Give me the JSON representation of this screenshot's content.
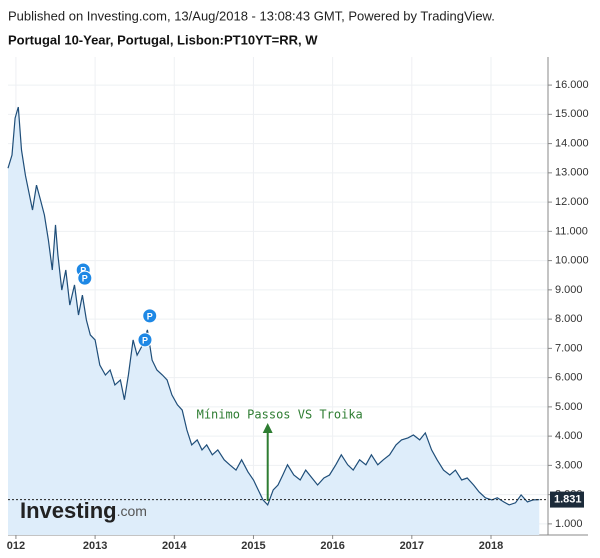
{
  "chart_data": {
    "type": "area",
    "header": "Published on Investing.com, 13/Aug/2018 - 13:08:43 GMT, Powered by TradingView.",
    "title": "Portugal 10-Year, Portugal, Lisbon:PT10YT=RR, W",
    "color": "#1f4e79",
    "fill": "#deedfa",
    "grid": true,
    "x": [
      2011.9,
      2011.95,
      2011.99,
      2012.03,
      2012.07,
      2012.12,
      2012.21,
      2012.26,
      2012.31,
      2012.36,
      2012.41,
      2012.46,
      2012.5,
      2012.53,
      2012.58,
      2012.63,
      2012.68,
      2012.74,
      2012.79,
      2012.84,
      2012.89,
      2012.94,
      2013.0,
      2013.06,
      2013.13,
      2013.19,
      2013.25,
      2013.32,
      2013.37,
      2013.42,
      2013.48,
      2013.53,
      2013.6,
      2013.66,
      2013.72,
      2013.78,
      2013.85,
      2013.91,
      2013.97,
      2014.04,
      2014.1,
      2014.16,
      2014.22,
      2014.29,
      2014.35,
      2014.41,
      2014.48,
      2014.55,
      2014.63,
      2014.7,
      2014.78,
      2014.85,
      2014.93,
      2015.0,
      2015.06,
      2015.12,
      2015.18,
      2015.25,
      2015.31,
      2015.37,
      2015.43,
      2015.51,
      2015.59,
      2015.66,
      2015.74,
      2015.81,
      2015.89,
      2015.96,
      2016.04,
      2016.11,
      2016.19,
      2016.26,
      2016.34,
      2016.42,
      2016.49,
      2016.57,
      2016.64,
      2016.72,
      2016.8,
      2016.87,
      2016.95,
      2017.02,
      2017.1,
      2017.17,
      2017.25,
      2017.32,
      2017.4,
      2017.48,
      2017.55,
      2017.63,
      2017.7,
      2017.78,
      2017.85,
      2017.93,
      2018.01,
      2018.08,
      2018.16,
      2018.23,
      2018.31,
      2018.38,
      2018.46,
      2018.53,
      2018.61
    ],
    "values": [
      13.16,
      13.61,
      14.87,
      15.25,
      13.78,
      12.92,
      11.73,
      12.58,
      12.07,
      11.56,
      10.7,
      9.68,
      11.22,
      10.19,
      8.99,
      9.68,
      8.48,
      9.17,
      8.14,
      8.82,
      7.97,
      7.46,
      7.29,
      6.43,
      6.09,
      6.26,
      5.75,
      5.92,
      5.24,
      6.09,
      7.29,
      6.77,
      7.12,
      7.63,
      6.6,
      6.26,
      6.09,
      5.92,
      5.41,
      5.07,
      4.89,
      4.21,
      3.7,
      3.87,
      3.53,
      3.7,
      3.36,
      3.53,
      3.19,
      3.02,
      2.84,
      3.19,
      2.78,
      2.5,
      2.16,
      1.82,
      1.65,
      2.16,
      2.33,
      2.67,
      3.02,
      2.67,
      2.5,
      2.84,
      2.57,
      2.33,
      2.57,
      2.67,
      3.02,
      3.36,
      3.02,
      2.84,
      3.19,
      3.02,
      3.36,
      3.02,
      3.19,
      3.36,
      3.7,
      3.87,
      3.94,
      4.04,
      3.87,
      4.11,
      3.53,
      3.19,
      2.84,
      2.67,
      2.84,
      2.5,
      2.57,
      2.33,
      2.09,
      1.89,
      1.82,
      1.89,
      1.75,
      1.65,
      1.72,
      1.99,
      1.75,
      1.82,
      1.831
    ],
    "last_value": 1.831,
    "xlim": [
      2011.9,
      2018.72
    ],
    "xticks": [
      {
        "value": 2012,
        "label": "012"
      },
      2013,
      2014,
      2015,
      2016,
      2017,
      2018
    ],
    "ylim": [
      0.62,
      16.96
    ],
    "yticks": [
      {
        "value": 1,
        "label": "1.000"
      },
      {
        "value": 2,
        "label": "2.000"
      },
      {
        "value": 3,
        "label": "3.000"
      },
      {
        "value": 4,
        "label": "4.000"
      },
      {
        "value": 5,
        "label": "5.000"
      },
      {
        "value": 6,
        "label": "6.000"
      },
      {
        "value": 7,
        "label": "7.000"
      },
      {
        "value": 8,
        "label": "8.000"
      },
      {
        "value": 9,
        "label": "9.000"
      },
      {
        "value": 10,
        "label": "10.000"
      },
      {
        "value": 11,
        "label": "11.000"
      },
      {
        "value": 12,
        "label": "12.000"
      },
      {
        "value": 13,
        "label": "13.000"
      },
      {
        "value": 14,
        "label": "14.000"
      },
      {
        "value": 15,
        "label": "15.000"
      },
      {
        "value": 16,
        "label": "16.000"
      }
    ],
    "annotation": {
      "text": "Mínimo Passos VS Troika",
      "x": 2015.18,
      "y": 4.38,
      "color": "#2e7d32"
    },
    "events": [
      {
        "label": "P",
        "x": 2012.85,
        "y": 9.68
      },
      {
        "label": "P",
        "x": 2012.87,
        "y": 9.4
      },
      {
        "label": "P",
        "x": 2013.69,
        "y": 8.11
      },
      {
        "label": "P",
        "x": 2013.63,
        "y": 7.29
      }
    ],
    "watermark": [
      "Investing",
      ".com"
    ]
  }
}
